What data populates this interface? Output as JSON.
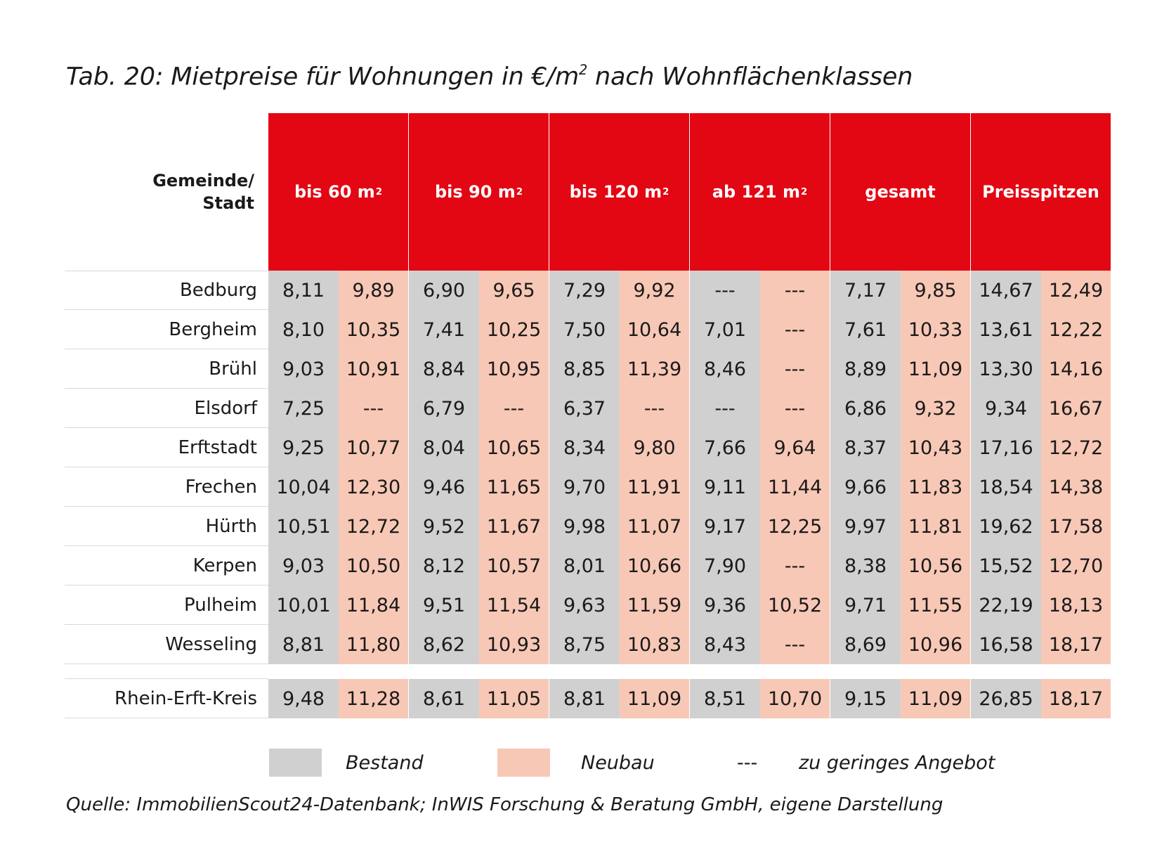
{
  "title": "Tab. 20: Mietpreise für Wohnungen in €/m",
  "title_sup": "2",
  "title_suffix": " nach Wohnflächenklassen",
  "header_label_line1": "Gemeinde/",
  "header_label_line2": "Stadt",
  "columns": [
    {
      "label": "bis 60 m",
      "sup": "2"
    },
    {
      "label": "bis 90 m",
      "sup": "2"
    },
    {
      "label": "bis 120 m",
      "sup": "2"
    },
    {
      "label": "ab 121 m",
      "sup": "2"
    },
    {
      "label": "gesamt",
      "sup": ""
    },
    {
      "label": "Preisspitzen",
      "sup": ""
    }
  ],
  "rows": [
    {
      "name": "Bedburg",
      "values": [
        "8,11",
        "9,89",
        "6,90",
        "9,65",
        "7,29",
        "9,92",
        "---",
        "---",
        "7,17",
        "9,85",
        "14,67",
        "12,49"
      ]
    },
    {
      "name": "Bergheim",
      "values": [
        "8,10",
        "10,35",
        "7,41",
        "10,25",
        "7,50",
        "10,64",
        "7,01",
        "---",
        "7,61",
        "10,33",
        "13,61",
        "12,22"
      ]
    },
    {
      "name": "Brühl",
      "values": [
        "9,03",
        "10,91",
        "8,84",
        "10,95",
        "8,85",
        "11,39",
        "8,46",
        "---",
        "8,89",
        "11,09",
        "13,30",
        "14,16"
      ]
    },
    {
      "name": "Elsdorf",
      "values": [
        "7,25",
        "---",
        "6,79",
        "---",
        "6,37",
        "---",
        "---",
        "---",
        "6,86",
        "9,32",
        "9,34",
        "16,67"
      ]
    },
    {
      "name": "Erftstadt",
      "values": [
        "9,25",
        "10,77",
        "8,04",
        "10,65",
        "8,34",
        "9,80",
        "7,66",
        "9,64",
        "8,37",
        "10,43",
        "17,16",
        "12,72"
      ]
    },
    {
      "name": "Frechen",
      "values": [
        "10,04",
        "12,30",
        "9,46",
        "11,65",
        "9,70",
        "11,91",
        "9,11",
        "11,44",
        "9,66",
        "11,83",
        "18,54",
        "14,38"
      ]
    },
    {
      "name": "Hürth",
      "values": [
        "10,51",
        "12,72",
        "9,52",
        "11,67",
        "9,98",
        "11,07",
        "9,17",
        "12,25",
        "9,97",
        "11,81",
        "19,62",
        "17,58"
      ]
    },
    {
      "name": "Kerpen",
      "values": [
        "9,03",
        "10,50",
        "8,12",
        "10,57",
        "8,01",
        "10,66",
        "7,90",
        "---",
        "8,38",
        "10,56",
        "15,52",
        "12,70"
      ]
    },
    {
      "name": "Pulheim",
      "values": [
        "10,01",
        "11,84",
        "9,51",
        "11,54",
        "9,63",
        "11,59",
        "9,36",
        "10,52",
        "9,71",
        "11,55",
        "22,19",
        "18,13"
      ]
    },
    {
      "name": "Wesseling",
      "values": [
        "8,81",
        "11,80",
        "8,62",
        "10,93",
        "8,75",
        "10,83",
        "8,43",
        "---",
        "8,69",
        "10,96",
        "16,58",
        "18,17"
      ]
    }
  ],
  "total_row": {
    "name": "Rhein-Erft-Kreis",
    "values": [
      "9,48",
      "11,28",
      "8,61",
      "11,05",
      "8,81",
      "11,09",
      "8,51",
      "10,70",
      "9,15",
      "11,09",
      "26,85",
      "18,17"
    ]
  },
  "legend": {
    "bestand": "Bestand",
    "neubau": "Neubau",
    "dash": "---",
    "dash_text": "zu geringes Angebot"
  },
  "colors": {
    "header_red": "#e30613",
    "bestand_gray": "#d0d0d0",
    "neubau_peach": "#f8c8b6"
  },
  "source": "Quelle: ImmobilienScout24-Datenbank; InWIS Forschung & Beratung GmbH, eigene Darstellung"
}
